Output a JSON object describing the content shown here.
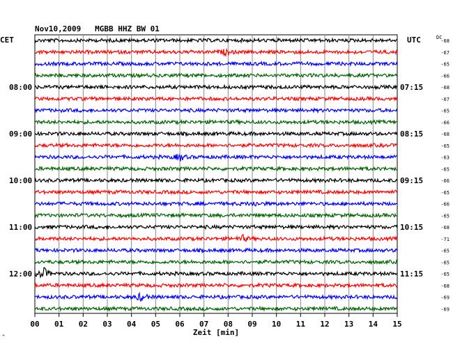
{
  "chart_data": {
    "type": "line",
    "title": "Nov10,2009   MGBB HHZ BW 01",
    "left_label": "CET",
    "right_label": "UTC",
    "dc_label": "DC",
    "xlabel": "Zeit [min]",
    "x_ticks": [
      "00",
      "01",
      "02",
      "03",
      "04",
      "05",
      "06",
      "07",
      "08",
      "09",
      "10",
      "11",
      "12",
      "13",
      "14",
      "15"
    ],
    "xlim": [
      0,
      15
    ],
    "left_hour_labels": [
      {
        "trace": 4,
        "text": "08:00"
      },
      {
        "trace": 8,
        "text": "09:00"
      },
      {
        "trace": 12,
        "text": "10:00"
      },
      {
        "trace": 16,
        "text": "11:00"
      },
      {
        "trace": 20,
        "text": "12:00"
      }
    ],
    "right_hour_labels": [
      {
        "trace": 4,
        "text": "07:15"
      },
      {
        "trace": 8,
        "text": "08:15"
      },
      {
        "trace": 12,
        "text": "09:15"
      },
      {
        "trace": 16,
        "text": "10:15"
      },
      {
        "trace": 20,
        "text": "11:15"
      }
    ],
    "dc_offsets": [
      "-68",
      "-67",
      "-65",
      "-66",
      "-68",
      "-67",
      "-65",
      "-66",
      "-68",
      "-65",
      "-63",
      "-65",
      "-66",
      "-65",
      "-66",
      "-65",
      "-68",
      "-71",
      "-65",
      "-65",
      "-65",
      "-68",
      "-69",
      "-69"
    ],
    "colors": [
      "#000000",
      "#ff0000",
      "#0000ff",
      "#006400"
    ],
    "events": [
      {
        "trace": 1,
        "minute": 7.9,
        "amp": 0.35
      },
      {
        "trace": 10,
        "minute": 6.0,
        "amp": 0.55
      },
      {
        "trace": 14,
        "minute": 9.1,
        "amp": 0.3
      },
      {
        "trace": 17,
        "minute": 8.6,
        "amp": 0.45
      },
      {
        "trace": 20,
        "minute": 0.35,
        "amp": 1.0
      },
      {
        "trace": 22,
        "minute": 4.4,
        "amp": 0.6
      }
    ],
    "grid": true,
    "corner_mark": "^"
  }
}
